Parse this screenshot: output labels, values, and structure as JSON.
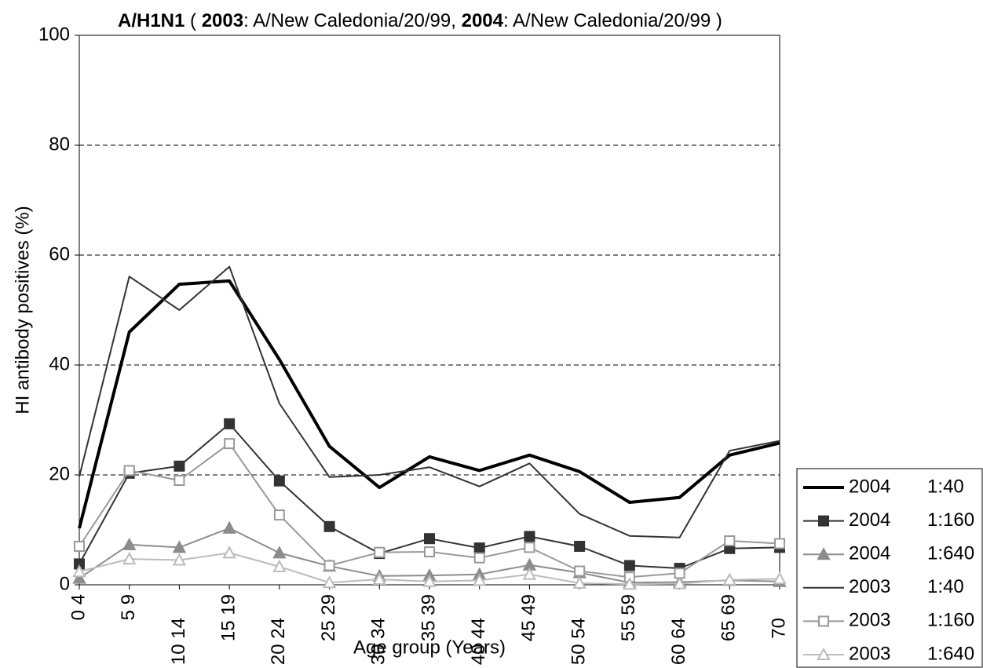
{
  "chart_data": {
    "type": "line",
    "title": [
      {
        "text": "A/H1N1",
        "bold": true
      },
      {
        "text": " ( ",
        "bold": false
      },
      {
        "text": "2003",
        "bold": true
      },
      {
        "text": ": A/New Caledonia/20/99, ",
        "bold": false
      },
      {
        "text": "2004",
        "bold": true
      },
      {
        "text": ": A/New Caledonia/20/99 )",
        "bold": false
      }
    ],
    "x_label": "Age group (Years)",
    "y_label": "HI antibody positives (%)",
    "categories": [
      "0 4",
      "5 9",
      "10 14",
      "15 19",
      "20 24",
      "25 29",
      "30 34",
      "35 39",
      "40 44",
      "45 49",
      "50 54",
      "55 59",
      "60 64",
      "65 69",
      "70"
    ],
    "ylim": [
      0,
      100
    ],
    "yticks": [
      0,
      20,
      40,
      60,
      80,
      100
    ],
    "grid": true,
    "legend": "bottom-right",
    "series": [
      {
        "name": "2004 1:40",
        "color": "#000000",
        "line_width": 4,
        "marker": null,
        "marker_fill": false,
        "values": [
          10.3,
          46,
          54.7,
          55.3,
          41,
          25.2,
          17.7,
          23.3,
          20.8,
          23.6,
          20.6,
          15,
          15.9,
          23.6,
          25.8
        ]
      },
      {
        "name": "2004 1:160",
        "color": "#333333",
        "line_width": 2,
        "marker": "square",
        "marker_fill": true,
        "values": [
          3.8,
          20.3,
          21.6,
          29.3,
          18.9,
          10.6,
          5.7,
          8.4,
          6.7,
          8.8,
          7,
          3.5,
          3,
          6.6,
          6.8
        ]
      },
      {
        "name": "2004 1:640",
        "color": "#8c8c8c",
        "line_width": 2,
        "marker": "triangle",
        "marker_fill": true,
        "values": [
          1.2,
          7.3,
          6.8,
          10.3,
          5.8,
          3.4,
          1.6,
          1.7,
          1.9,
          3.6,
          2.2,
          0.4,
          0.5,
          0.8,
          0.6
        ]
      },
      {
        "name": "2003 1:40",
        "color": "#333333",
        "line_width": 2,
        "marker": null,
        "marker_fill": false,
        "values": [
          19.7,
          56.1,
          50,
          57.9,
          33,
          19.6,
          20,
          21.4,
          17.9,
          22.1,
          12.9,
          8.9,
          8.6,
          24.4,
          26.2
        ]
      },
      {
        "name": "2003 1:160",
        "color": "#999999",
        "line_width": 2,
        "marker": "square",
        "marker_fill": false,
        "values": [
          7,
          20.8,
          19,
          25.7,
          12.7,
          3.5,
          5.9,
          6,
          4.9,
          6.8,
          2.5,
          1.4,
          2.1,
          8,
          7.5
        ]
      },
      {
        "name": "2003 1:640",
        "color": "#bbbbbb",
        "line_width": 2,
        "marker": "triangle",
        "marker_fill": false,
        "values": [
          2.4,
          4.7,
          4.5,
          5.8,
          3.3,
          0.4,
          1,
          0.6,
          0.8,
          1.9,
          0.3,
          0.1,
          0.2,
          0.9,
          1.1
        ]
      }
    ]
  }
}
